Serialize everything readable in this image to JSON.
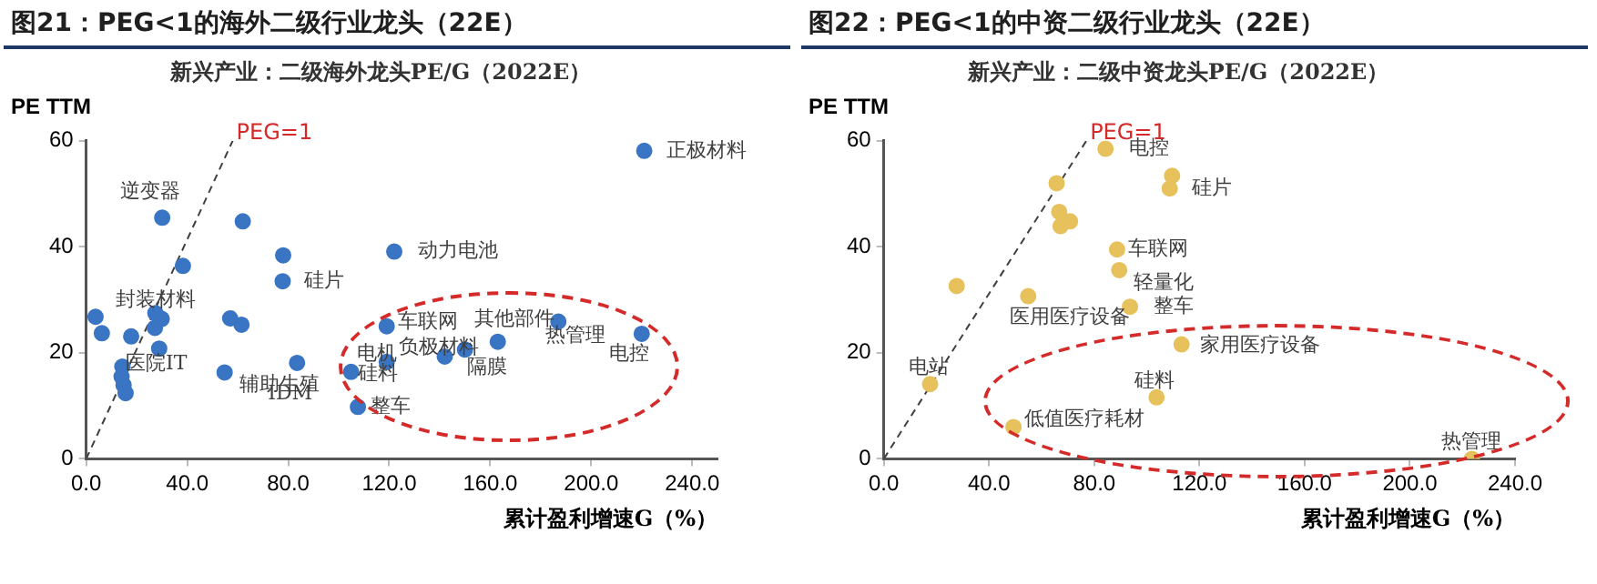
{
  "chart_data": [
    {
      "type": "scatter",
      "title": "图21：PEG<1的海外二级行业龙头（22E）",
      "subtitle": "新兴产业：二级海外龙头PE/G（2022E）",
      "xlabel": "累计盈利增速G（%）",
      "ylabel": "PE TTM",
      "xlim": [
        0,
        250
      ],
      "xticks": [
        {
          "value": 0,
          "label": "0.0"
        },
        {
          "value": 40,
          "label": "40.0"
        },
        {
          "value": 80,
          "label": "80.0"
        },
        {
          "value": 120,
          "label": "120.0"
        },
        {
          "value": 160,
          "label": "160.0"
        },
        {
          "value": 200,
          "label": "200.0"
        },
        {
          "value": 240,
          "label": "240.0"
        }
      ],
      "ylim": [
        0,
        60
      ],
      "yticks": [
        0,
        20,
        40,
        60
      ],
      "grid": false,
      "legend": false,
      "series": [
        {
          "type": "scatter",
          "marker": "circle",
          "color": "#3a75c4",
          "x": [
            3.7,
            6.2,
            17.8,
            14.3,
            14,
            14.8,
            15.6,
            27.4,
            27.2,
            29.9,
            28.9,
            30.1,
            38.3,
            54.8,
            57,
            61.5,
            62,
            78,
            77.8,
            83.5,
            104.9,
            107.6,
            221,
            122,
            119,
            119,
            142,
            150,
            163,
            187,
            220
          ],
          "values": [
            26.8,
            23.7,
            23.1,
            17.4,
            15.5,
            13.9,
            12.4,
            27.5,
            24.7,
            26.4,
            20.8,
            45.5,
            36.4,
            16.3,
            26.5,
            25.3,
            44.8,
            38.4,
            33.5,
            18.1,
            16.4,
            9.8,
            58.1,
            39.1,
            25,
            18.3,
            19.3,
            20.6,
            22.1,
            25.9,
            23.6
          ]
        },
        {
          "type": "line",
          "marker": "none",
          "name": "PEG=1",
          "color": "#404040",
          "line_style": "dashed",
          "x": [
            0,
            58
          ],
          "values": [
            0,
            60
          ]
        }
      ],
      "annotations": [
        {
          "text": "逆变器",
          "x": 30.1,
          "y": 45.5
        },
        {
          "text": "封装材料",
          "x": 27.4,
          "y": 27.5
        },
        {
          "text": "医院IT",
          "x": 15.6,
          "y": 12.4
        },
        {
          "text": "辅助生殖",
          "x": 54.8,
          "y": 16.3
        },
        {
          "text": "IDM",
          "x": 83.5,
          "y": 18.1
        },
        {
          "text": "硅片",
          "x": 77.8,
          "y": 33.5
        },
        {
          "text": "动力电池",
          "x": 122,
          "y": 39.1
        },
        {
          "text": "正极材料",
          "x": 221,
          "y": 58.1
        },
        {
          "text": "车联网",
          "x": 119,
          "y": 25
        },
        {
          "text": "其他部件",
          "x": 163,
          "y": 22.1
        },
        {
          "text": "热管理",
          "x": 187,
          "y": 25.9
        },
        {
          "text": "电控",
          "x": 220,
          "y": 23.6
        },
        {
          "text": "电机",
          "x": 104.9,
          "y": 16.4
        },
        {
          "text": "负极材料",
          "x": 142,
          "y": 19.3
        },
        {
          "text": "硅料",
          "x": 119,
          "y": 18.3
        },
        {
          "text": "隔膜",
          "x": 150,
          "y": 20.6
        },
        {
          "text": "整车",
          "x": 107.6,
          "y": 9.8
        }
      ]
    },
    {
      "type": "scatter",
      "title": "图22：PEG<1的中资二级行业龙头（22E）",
      "subtitle": "新兴产业：二级中资龙头PE/G（2022E）",
      "xlabel": "累计盈利增速G（%）",
      "ylabel": "PE TTM",
      "xlim": [
        0,
        240
      ],
      "xticks": [
        {
          "value": 0,
          "label": "0.0"
        },
        {
          "value": 40,
          "label": "40.0"
        },
        {
          "value": 80,
          "label": "80.0"
        },
        {
          "value": 120,
          "label": "120.0"
        },
        {
          "value": 160,
          "label": "160.0"
        },
        {
          "value": 200,
          "label": "200.0"
        },
        {
          "value": 240,
          "label": "240.0"
        }
      ],
      "ylim": [
        0,
        60
      ],
      "yticks": [
        0,
        20,
        40,
        60
      ],
      "grid": false,
      "legend": false,
      "series": [
        {
          "type": "scatter",
          "marker": "circle",
          "color": "#e6c15c",
          "x": [
            84.3,
            65.7,
            66.7,
            67.2,
            70.8,
            88.7,
            89.5,
            27.7,
            54.9,
            93.6,
            17.6,
            49.3,
            103.7,
            113.2,
            109.6,
            108.7,
            223.6
          ],
          "values": [
            58.5,
            52,
            46.6,
            43.9,
            44.8,
            39.5,
            35.6,
            32.6,
            30.7,
            28.7,
            14.1,
            6,
            11.6,
            21.6,
            53.4,
            51,
            0
          ]
        },
        {
          "type": "line",
          "marker": "none",
          "name": "PEG=1",
          "color": "#404040",
          "line_style": "dashed",
          "x": [
            0,
            77
          ],
          "values": [
            0,
            60
          ]
        }
      ],
      "annotations": [
        {
          "text": "电控",
          "x": 84.3,
          "y": 58.5
        },
        {
          "text": "硅片",
          "x": 108.7,
          "y": 51
        },
        {
          "text": "车联网",
          "x": 88.7,
          "y": 39.5
        },
        {
          "text": "轻量化",
          "x": 89.5,
          "y": 35.6
        },
        {
          "text": "整车",
          "x": 93.6,
          "y": 28.7
        },
        {
          "text": "医用医疗设备",
          "x": 54.9,
          "y": 30.7
        },
        {
          "text": "家用医疗设备",
          "x": 113.2,
          "y": 21.6
        },
        {
          "text": "硅料",
          "x": 103.7,
          "y": 11.6
        },
        {
          "text": "电站",
          "x": 17.6,
          "y": 14.1
        },
        {
          "text": "低值医疗耗材",
          "x": 49.3,
          "y": 6
        },
        {
          "text": "热管理",
          "x": 223.6,
          "y": 0
        }
      ]
    }
  ]
}
